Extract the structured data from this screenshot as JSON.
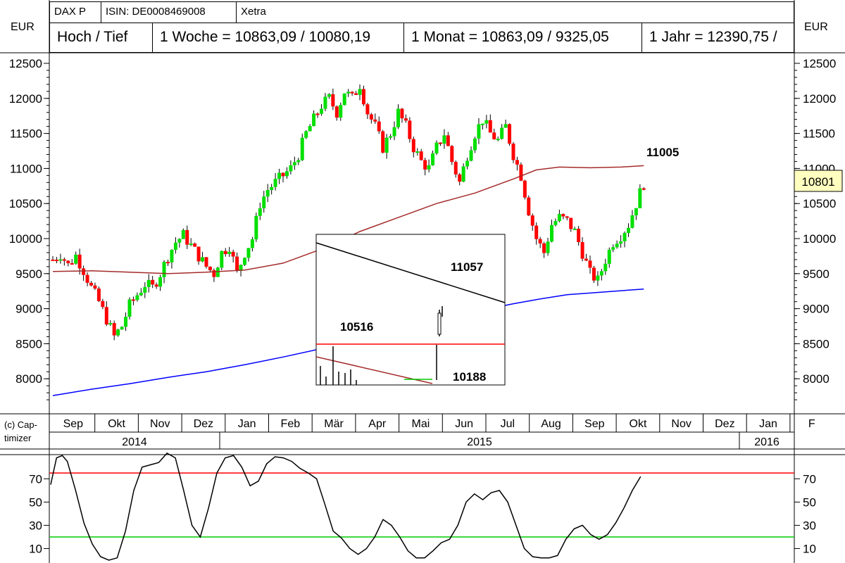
{
  "header": {
    "symbol": "DAX P",
    "isin": "ISIN: DE0008469008",
    "exchange": "Xetra",
    "hoch_tief_label": "Hoch / Tief",
    "week": "1 Woche = 10863,09 / 10080,19",
    "month": "1 Monat = 10863,09 / 9325,05",
    "year": "1 Jahr = 12390,75 /"
  },
  "currency_left": "EUR",
  "currency_right": "EUR",
  "copyright": "(c) Cap-",
  "copyright2": "timizer",
  "colors": {
    "up": "#00e000",
    "down": "#ff0000",
    "ma200": "#a52a2a",
    "blue": "#0000ff",
    "resist": "#ff0000",
    "support": "#00cc00"
  },
  "chart_data": [
    {
      "type": "candlestick",
      "name": "price",
      "ylim": [
        7600,
        12600
      ],
      "y_ticks": [
        8000,
        8500,
        9000,
        9500,
        10000,
        10500,
        11000,
        11500,
        12000,
        12500
      ],
      "months": [
        "Sep",
        "Okt",
        "Nov",
        "Dez",
        "Jan",
        "Feb",
        "Mär",
        "Apr",
        "Mai",
        "Jun",
        "Jul",
        "Aug",
        "Sep",
        "Okt",
        "Nov",
        "Dez",
        "Jan",
        "F"
      ],
      "years": [
        "2014",
        "2015",
        "2016"
      ],
      "close_path": [
        [
          0,
          9700
        ],
        [
          1,
          9780
        ],
        [
          2,
          9620
        ],
        [
          3,
          9760
        ],
        [
          4,
          9550
        ],
        [
          5,
          9300
        ],
        [
          6,
          9100
        ],
        [
          7,
          8850
        ],
        [
          8,
          8600
        ],
        [
          9,
          8750
        ],
        [
          10,
          9050
        ],
        [
          11,
          9200
        ],
        [
          12,
          9350
        ],
        [
          13,
          9300
        ],
        [
          14,
          9500
        ],
        [
          15,
          9750
        ],
        [
          16,
          9950
        ],
        [
          17,
          10050
        ],
        [
          18,
          9900
        ],
        [
          19,
          9750
        ],
        [
          20,
          9600
        ],
        [
          21,
          9500
        ],
        [
          22,
          9800
        ],
        [
          23,
          9900
        ],
        [
          24,
          9500
        ],
        [
          25,
          9800
        ],
        [
          26,
          10000
        ],
        [
          27,
          10500
        ],
        [
          28,
          10700
        ],
        [
          29,
          10800
        ],
        [
          30,
          10900
        ],
        [
          31,
          11000
        ],
        [
          32,
          11200
        ],
        [
          33,
          11500
        ],
        [
          34,
          11700
        ],
        [
          35,
          11900
        ],
        [
          36,
          12000
        ],
        [
          37,
          11800
        ],
        [
          38,
          12100
        ],
        [
          39,
          12000
        ],
        [
          40,
          12200
        ],
        [
          41,
          11800
        ],
        [
          42,
          11600
        ],
        [
          43,
          11300
        ],
        [
          44,
          11500
        ],
        [
          45,
          11800
        ],
        [
          46,
          11600
        ],
        [
          47,
          11300
        ],
        [
          48,
          11100
        ],
        [
          49,
          11000
        ],
        [
          50,
          11300
        ],
        [
          51,
          11500
        ],
        [
          52,
          11100
        ],
        [
          53,
          10800
        ],
        [
          54,
          11200
        ],
        [
          55,
          11500
        ],
        [
          56,
          11700
        ],
        [
          57,
          11500
        ],
        [
          58,
          11400
        ],
        [
          59,
          11600
        ],
        [
          60,
          11200
        ],
        [
          61,
          10900
        ],
        [
          62,
          10400
        ],
        [
          63,
          10000
        ],
        [
          64,
          9800
        ],
        [
          65,
          10200
        ],
        [
          66,
          10300
        ],
        [
          67,
          10250
        ],
        [
          68,
          10100
        ],
        [
          69,
          9800
        ],
        [
          70,
          9500
        ],
        [
          71,
          9400
        ],
        [
          72,
          9700
        ],
        [
          73,
          9950
        ],
        [
          74,
          10050
        ],
        [
          75,
          10200
        ],
        [
          76,
          10500
        ],
        [
          77,
          10801
        ]
      ],
      "ma200_path": [
        [
          0,
          9530
        ],
        [
          5,
          9540
        ],
        [
          10,
          9520
        ],
        [
          15,
          9500
        ],
        [
          20,
          9520
        ],
        [
          25,
          9550
        ],
        [
          30,
          9650
        ],
        [
          35,
          9850
        ],
        [
          40,
          10100
        ],
        [
          45,
          10300
        ],
        [
          50,
          10500
        ],
        [
          55,
          10650
        ],
        [
          60,
          10850
        ],
        [
          63,
          10980
        ],
        [
          66,
          11020
        ],
        [
          70,
          11010
        ],
        [
          74,
          11020
        ],
        [
          77,
          11040
        ]
      ],
      "blue_path": [
        [
          0,
          7760
        ],
        [
          5,
          7850
        ],
        [
          10,
          7930
        ],
        [
          15,
          8020
        ],
        [
          20,
          8100
        ],
        [
          25,
          8200
        ],
        [
          30,
          8310
        ],
        [
          35,
          8430
        ],
        [
          40,
          8550
        ],
        [
          45,
          8680
        ],
        [
          50,
          8820
        ],
        [
          55,
          8960
        ],
        [
          60,
          9070
        ],
        [
          63,
          9130
        ],
        [
          67,
          9200
        ],
        [
          72,
          9240
        ],
        [
          77,
          9280
        ]
      ],
      "labels": {
        "ma200_value": "11005",
        "last_price": "10801"
      }
    },
    {
      "type": "line",
      "name": "inset",
      "labels": {
        "down_trend_value": "11057",
        "resistance_value": "10516",
        "support_value": "10188"
      }
    },
    {
      "type": "line",
      "name": "oscillator",
      "ylim": [
        0,
        95
      ],
      "y_ticks": [
        10,
        30,
        50,
        70
      ],
      "upper_level": 75,
      "lower_level": 20,
      "values": [
        [
          0,
          65
        ],
        [
          0.7,
          88
        ],
        [
          1.4,
          90
        ],
        [
          2,
          85
        ],
        [
          3,
          60
        ],
        [
          4,
          32
        ],
        [
          5,
          14
        ],
        [
          6,
          3
        ],
        [
          7,
          0
        ],
        [
          8,
          2
        ],
        [
          9,
          25
        ],
        [
          10,
          60
        ],
        [
          11,
          80
        ],
        [
          12,
          82
        ],
        [
          13,
          84
        ],
        [
          14,
          92
        ],
        [
          15,
          88
        ],
        [
          16,
          60
        ],
        [
          17,
          30
        ],
        [
          18,
          20
        ],
        [
          19,
          45
        ],
        [
          20,
          75
        ],
        [
          21,
          88
        ],
        [
          22,
          90
        ],
        [
          23,
          80
        ],
        [
          24,
          64
        ],
        [
          25,
          68
        ],
        [
          26,
          83
        ],
        [
          27,
          89
        ],
        [
          28,
          88
        ],
        [
          29,
          85
        ],
        [
          30,
          79
        ],
        [
          31,
          75
        ],
        [
          32,
          70
        ],
        [
          33,
          48
        ],
        [
          34,
          25
        ],
        [
          35,
          19
        ],
        [
          36,
          10
        ],
        [
          37,
          5
        ],
        [
          38,
          10
        ],
        [
          39,
          20
        ],
        [
          40,
          35
        ],
        [
          41,
          30
        ],
        [
          42,
          20
        ],
        [
          43,
          8
        ],
        [
          44,
          2
        ],
        [
          45,
          2
        ],
        [
          46,
          8
        ],
        [
          47,
          15
        ],
        [
          48,
          18
        ],
        [
          49,
          30
        ],
        [
          50,
          50
        ],
        [
          51,
          57
        ],
        [
          52,
          52
        ],
        [
          53,
          58
        ],
        [
          54,
          60
        ],
        [
          55,
          50
        ],
        [
          56,
          30
        ],
        [
          57,
          10
        ],
        [
          58,
          3
        ],
        [
          59,
          2
        ],
        [
          60,
          2
        ],
        [
          61,
          4
        ],
        [
          62,
          18
        ],
        [
          63,
          27
        ],
        [
          64,
          30
        ],
        [
          65,
          22
        ],
        [
          66,
          18
        ],
        [
          67,
          22
        ],
        [
          68,
          32
        ],
        [
          69,
          45
        ],
        [
          70,
          60
        ],
        [
          71,
          72
        ]
      ]
    }
  ]
}
